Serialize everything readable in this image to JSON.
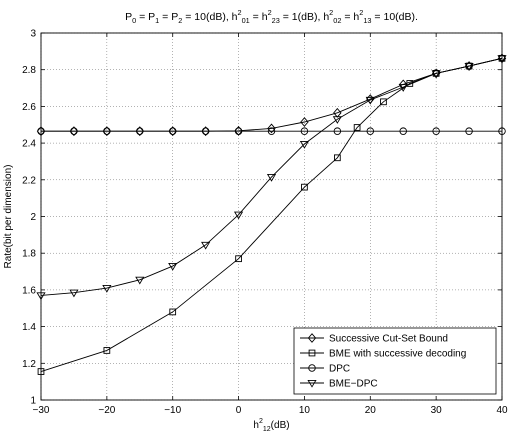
{
  "chart_data": {
    "type": "line",
    "title": {
      "segments": [
        {
          "t": "P"
        },
        {
          "t": "0",
          "pos": "sub"
        },
        {
          "t": " = P"
        },
        {
          "t": "1",
          "pos": "sub"
        },
        {
          "t": " = P"
        },
        {
          "t": "2",
          "pos": "sub"
        },
        {
          "t": " = 10(dB), h"
        },
        {
          "t": "2",
          "pos": "sup"
        },
        {
          "t": "01",
          "pos": "sub"
        },
        {
          "t": " = h"
        },
        {
          "t": "2",
          "pos": "sup"
        },
        {
          "t": "23",
          "pos": "sub"
        },
        {
          "t": " = 1(dB), h"
        },
        {
          "t": "2",
          "pos": "sup"
        },
        {
          "t": "02",
          "pos": "sub"
        },
        {
          "t": " = h"
        },
        {
          "t": "2",
          "pos": "sup"
        },
        {
          "t": "13",
          "pos": "sub"
        },
        {
          "t": " = 10(dB)."
        }
      ]
    },
    "xlabel": {
      "segments": [
        {
          "t": "h"
        },
        {
          "t": "2",
          "pos": "sup"
        },
        {
          "t": "12",
          "pos": "sub"
        },
        {
          "t": "(dB)"
        }
      ]
    },
    "ylabel": "Rate(bit per dimension)",
    "xlim": [
      -30,
      40
    ],
    "ylim": [
      1,
      3
    ],
    "xticks": [
      -30,
      -20,
      -10,
      0,
      10,
      20,
      30,
      40
    ],
    "xtick_labels": [
      "−30",
      "−20",
      "−10",
      "0",
      "10",
      "20",
      "30",
      "40"
    ],
    "yticks": [
      1,
      1.2,
      1.4,
      1.6,
      1.8,
      2,
      2.2,
      2.4,
      2.6,
      2.8,
      3
    ],
    "ytick_labels": [
      "1",
      "1.2",
      "1.4",
      "1.6",
      "1.8",
      "2",
      "2.2",
      "2.4",
      "2.6",
      "2.8",
      "3"
    ],
    "grid": true,
    "legend_position": "bottom-right",
    "line_color": "#000000",
    "series": [
      {
        "name": "Successive Cut-Set Bound",
        "marker": "diamond",
        "x": [
          -30,
          -25,
          -20,
          -15,
          -10,
          -5,
          0,
          5,
          10,
          15,
          20,
          25,
          30,
          35,
          40
        ],
        "y": [
          2.465,
          2.465,
          2.465,
          2.465,
          2.465,
          2.465,
          2.467,
          2.48,
          2.515,
          2.565,
          2.64,
          2.72,
          2.78,
          2.82,
          2.862
        ]
      },
      {
        "name": "BME with successive decoding",
        "marker": "square",
        "x": [
          -30,
          -20,
          -10,
          0,
          10,
          15,
          18,
          22,
          26,
          30,
          35,
          40
        ],
        "y": [
          1.155,
          1.27,
          1.48,
          1.77,
          2.16,
          2.32,
          2.485,
          2.625,
          2.725,
          2.78,
          2.82,
          2.862
        ]
      },
      {
        "name": "DPC",
        "marker": "circle",
        "x": [
          -30,
          -25,
          -20,
          -15,
          -10,
          -5,
          0,
          5,
          10,
          15,
          20,
          25,
          30,
          35,
          40
        ],
        "y": [
          2.465,
          2.465,
          2.465,
          2.465,
          2.465,
          2.465,
          2.465,
          2.465,
          2.465,
          2.465,
          2.465,
          2.465,
          2.465,
          2.465,
          2.465
        ]
      },
      {
        "name": "BME−DPC",
        "marker": "triangle-down",
        "x": [
          -30,
          -25,
          -20,
          -15,
          -10,
          -5,
          0,
          5,
          10,
          15,
          20,
          25,
          30,
          35,
          40
        ],
        "y": [
          1.57,
          1.585,
          1.61,
          1.655,
          1.73,
          1.845,
          2.01,
          2.215,
          2.395,
          2.53,
          2.635,
          2.705,
          2.78,
          2.82,
          2.862
        ]
      }
    ]
  }
}
